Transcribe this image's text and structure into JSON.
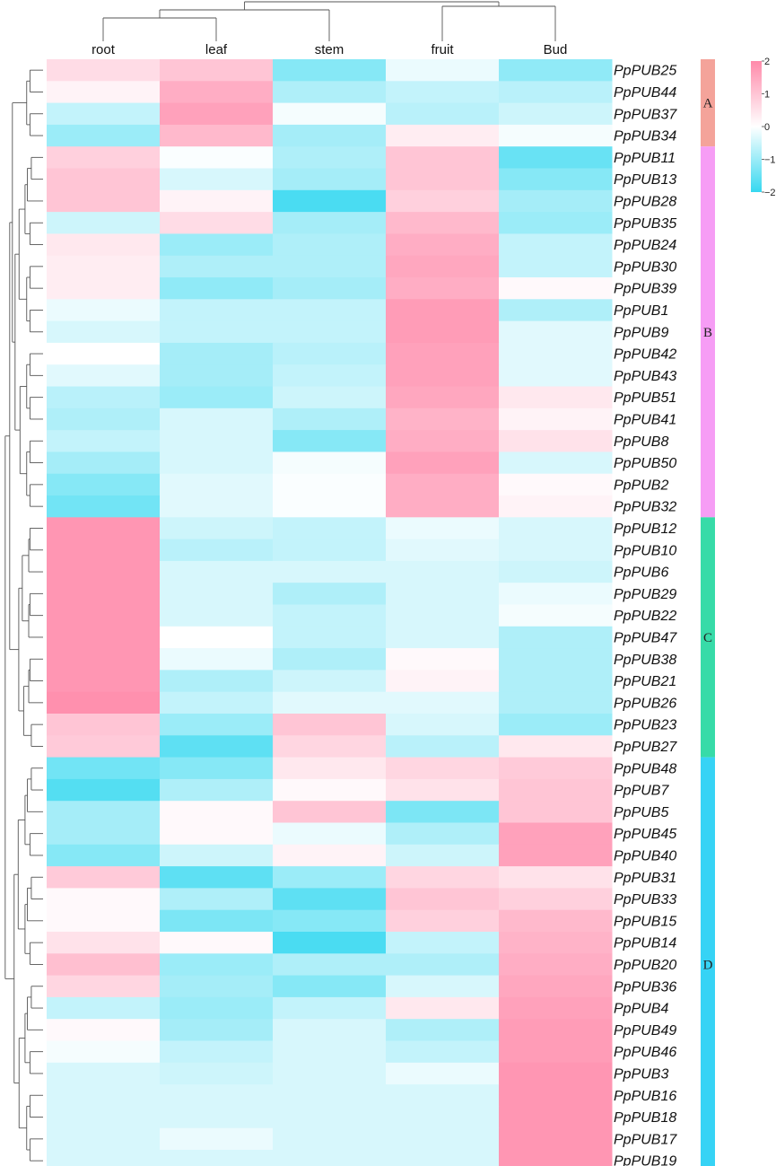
{
  "chart_data": {
    "type": "heatmap",
    "columns": [
      "root",
      "leaf",
      "stem",
      "fruit",
      "Bud"
    ],
    "rows": [
      "PpPUB25",
      "PpPUB44",
      "PpPUB37",
      "PpPUB34",
      "PpPUB11",
      "PpPUB13",
      "PpPUB28",
      "PpPUB35",
      "PpPUB24",
      "PpPUB30",
      "PpPUB39",
      "PpPUB1",
      "PpPUB9",
      "PpPUB42",
      "PpPUB43",
      "PpPUB51",
      "PpPUB41",
      "PpPUB8",
      "PpPUB50",
      "PpPUB2",
      "PpPUB32",
      "PpPUB12",
      "PpPUB10",
      "PpPUB6",
      "PpPUB29",
      "PpPUB22",
      "PpPUB47",
      "PpPUB38",
      "PpPUB21",
      "PpPUB26",
      "PpPUB23",
      "PpPUB27",
      "PpPUB48",
      "PpPUB7",
      "PpPUB5",
      "PpPUB45",
      "PpPUB40",
      "PpPUB31",
      "PpPUB33",
      "PpPUB15",
      "PpPUB14",
      "PpPUB20",
      "PpPUB36",
      "PpPUB4",
      "PpPUB49",
      "PpPUB46",
      "PpPUB3",
      "PpPUB16",
      "PpPUB18",
      "PpPUB17",
      "PpPUB19"
    ],
    "values": [
      [
        0.6,
        1.0,
        -1.2,
        -0.2,
        -1.1
      ],
      [
        0.2,
        1.4,
        -0.8,
        -0.6,
        -0.7
      ],
      [
        -0.6,
        1.6,
        -0.1,
        -0.7,
        -0.5
      ],
      [
        -1.0,
        1.2,
        -0.9,
        0.3,
        -0.1
      ],
      [
        0.8,
        -0.05,
        -0.8,
        1.0,
        -1.5
      ],
      [
        1.0,
        -0.4,
        -0.9,
        1.0,
        -1.2
      ],
      [
        1.0,
        0.2,
        -1.8,
        0.8,
        -0.9
      ],
      [
        -0.5,
        0.6,
        -0.9,
        1.2,
        -1.0
      ],
      [
        0.4,
        -1.0,
        -0.8,
        1.4,
        -0.6
      ],
      [
        0.3,
        -0.8,
        -0.8,
        1.5,
        -0.6
      ],
      [
        0.3,
        -1.1,
        -0.9,
        1.4,
        0.1
      ],
      [
        -0.2,
        -0.6,
        -0.6,
        1.7,
        -0.8
      ],
      [
        -0.4,
        -0.6,
        -0.6,
        1.7,
        -0.3
      ],
      [
        0.0,
        -0.9,
        -0.7,
        1.6,
        -0.3
      ],
      [
        -0.3,
        -0.9,
        -0.6,
        1.6,
        -0.3
      ],
      [
        -0.7,
        -1.0,
        -0.5,
        1.5,
        0.4
      ],
      [
        -0.8,
        -0.4,
        -0.8,
        1.3,
        0.2
      ],
      [
        -0.6,
        -0.4,
        -1.2,
        1.4,
        0.5
      ],
      [
        -0.9,
        -0.4,
        -0.1,
        1.6,
        -0.4
      ],
      [
        -1.2,
        -0.3,
        -0.05,
        1.4,
        0.1
      ],
      [
        -1.4,
        -0.3,
        -0.05,
        1.4,
        0.2
      ],
      [
        1.8,
        -0.5,
        -0.6,
        -0.2,
        -0.4
      ],
      [
        1.8,
        -0.7,
        -0.6,
        -0.3,
        -0.4
      ],
      [
        1.8,
        -0.4,
        -0.4,
        -0.4,
        -0.5
      ],
      [
        1.8,
        -0.4,
        -0.8,
        -0.4,
        -0.2
      ],
      [
        1.8,
        -0.4,
        -0.6,
        -0.4,
        -0.1
      ],
      [
        1.8,
        0.0,
        -0.6,
        -0.4,
        -0.8
      ],
      [
        1.8,
        -0.2,
        -0.8,
        0.1,
        -0.8
      ],
      [
        1.8,
        -0.8,
        -0.5,
        0.2,
        -0.8
      ],
      [
        1.9,
        -0.6,
        -0.3,
        -0.3,
        -0.8
      ],
      [
        1.0,
        -1.0,
        1.0,
        -0.4,
        -1.0
      ],
      [
        0.9,
        -1.6,
        0.7,
        -0.7,
        0.4
      ],
      [
        -1.4,
        -1.2,
        0.4,
        0.7,
        0.9
      ],
      [
        -1.7,
        -0.8,
        0.1,
        0.5,
        1.0
      ],
      [
        -0.9,
        0.1,
        1.0,
        -1.3,
        1.0
      ],
      [
        -0.9,
        0.1,
        -0.2,
        -0.8,
        1.6
      ],
      [
        -1.2,
        -0.5,
        0.2,
        -0.5,
        1.6
      ],
      [
        0.9,
        -1.6,
        -1.0,
        0.7,
        0.5
      ],
      [
        0.1,
        -0.8,
        -1.6,
        1.0,
        0.8
      ],
      [
        0.1,
        -1.3,
        -1.2,
        0.8,
        1.2
      ],
      [
        0.5,
        0.1,
        -1.8,
        -0.6,
        1.3
      ],
      [
        1.1,
        -1.0,
        -0.8,
        -0.8,
        1.4
      ],
      [
        0.7,
        -0.9,
        -1.2,
        -0.4,
        1.5
      ],
      [
        -0.6,
        -1.0,
        -0.6,
        0.4,
        1.6
      ],
      [
        0.1,
        -0.9,
        -0.4,
        -0.8,
        1.7
      ],
      [
        -0.1,
        -0.6,
        -0.4,
        -0.6,
        1.7
      ],
      [
        -0.4,
        -0.5,
        -0.4,
        -0.2,
        1.8
      ],
      [
        -0.4,
        -0.4,
        -0.4,
        -0.4,
        1.8
      ],
      [
        -0.4,
        -0.4,
        -0.4,
        -0.4,
        1.8
      ],
      [
        -0.4,
        -0.2,
        -0.4,
        -0.4,
        1.8
      ],
      [
        -0.4,
        -0.4,
        -0.4,
        -0.4,
        1.8
      ]
    ],
    "clusters": [
      {
        "label": "A",
        "rows": [
          0,
          3
        ],
        "color": "#f4a39a"
      },
      {
        "label": "B",
        "rows": [
          4,
          20
        ],
        "color": "#f69df5"
      },
      {
        "label": "C",
        "rows": [
          21,
          31
        ],
        "color": "#37dba8"
      },
      {
        "label": "D",
        "rows": [
          32,
          50
        ],
        "color": "#36d3f5"
      }
    ],
    "color_scale": {
      "min": -2,
      "max": 2,
      "low": "#36d8f0",
      "mid": "#ffffff",
      "high": "#ff8aaa",
      "ticks": [
        "2",
        "1",
        "0",
        "−1",
        "−2"
      ]
    },
    "column_dendrogram": true,
    "row_dendrogram": true
  }
}
